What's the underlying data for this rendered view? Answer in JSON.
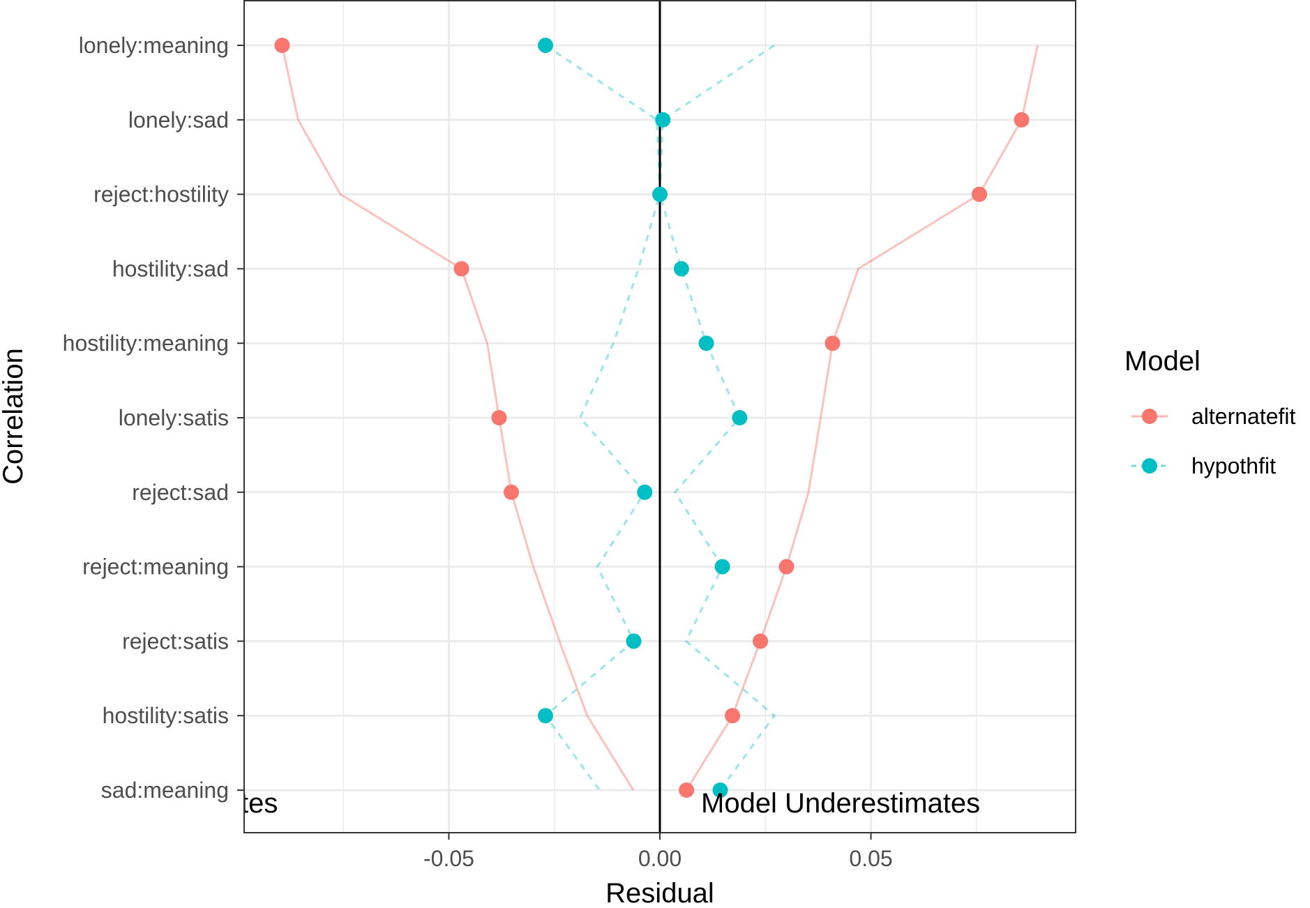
{
  "chart_data": {
    "type": "scatter",
    "xlabel": "Residual",
    "ylabel": "Correlation",
    "xlim": [
      -0.0985,
      0.0985
    ],
    "x_ticks": [
      -0.05,
      0.0,
      0.05
    ],
    "x_tick_labels": [
      "-0.05",
      "0.00",
      "0.05"
    ],
    "categories": [
      "lonely:meaning",
      "lonely:sad",
      "reject:hostility",
      "hostility:sad",
      "hostility:meaning",
      "lonely:satis",
      "reject:sad",
      "reject:meaning",
      "reject:satis",
      "hostility:satis",
      "sad:meaning"
    ],
    "grid": true,
    "reference_line_x": 0,
    "legend": {
      "title": "Model",
      "placement": "right",
      "entries": [
        "alternatefit",
        "hypothfit"
      ]
    },
    "series": [
      {
        "name": "alternatefit",
        "color": "#F8766D",
        "line_style": "solid",
        "points": [
          -0.0895,
          0.0857,
          0.0757,
          -0.047,
          0.0409,
          -0.0381,
          -0.0352,
          0.03,
          0.0238,
          0.0172,
          0.0063
        ],
        "upper_line": [
          0.0895,
          0.0857,
          0.0757,
          0.047,
          0.0409,
          0.0381,
          0.0352,
          0.03,
          0.0238,
          0.0172,
          0.0063
        ],
        "lower_line": [
          -0.0895,
          -0.0857,
          -0.0757,
          -0.047,
          -0.0409,
          -0.0381,
          -0.0352,
          -0.03,
          -0.0238,
          -0.0172,
          -0.0063
        ]
      },
      {
        "name": "hypothfit",
        "color": "#00BFC4",
        "line_style": "dashed",
        "points": [
          -0.0271,
          0.0007,
          0.0,
          0.0051,
          0.011,
          0.0189,
          -0.0036,
          0.0148,
          -0.0062,
          -0.0271,
          0.0143
        ],
        "upper_line": [
          0.0271,
          0.0007,
          0.0,
          0.0051,
          0.011,
          0.0189,
          0.0036,
          0.0148,
          0.0062,
          0.0271,
          0.0143
        ],
        "lower_line": [
          -0.0271,
          -0.0007,
          -0.0,
          -0.0051,
          -0.011,
          -0.0189,
          -0.0036,
          -0.0148,
          -0.0062,
          -0.0271,
          -0.0143
        ]
      }
    ],
    "annotations": [
      {
        "text": "tes",
        "side": "left"
      },
      {
        "text": "Model Underestimates",
        "side": "right"
      }
    ]
  }
}
